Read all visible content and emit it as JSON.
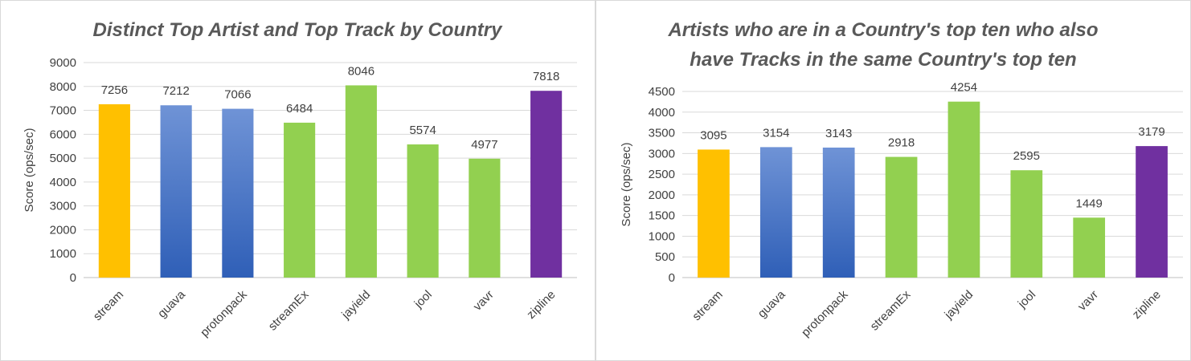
{
  "chart_data": [
    {
      "type": "bar",
      "title": [
        "Distinct Top Artist and Top Track by Country"
      ],
      "ylabel": "Score (ops/sec)",
      "categories": [
        "stream",
        "guava",
        "protonpack",
        "streamEx",
        "jayield",
        "jool",
        "vavr",
        "zipline"
      ],
      "values": [
        7256,
        7212,
        7066,
        6484,
        8046,
        5574,
        4977,
        7818
      ],
      "colors": [
        "yellow",
        "blue",
        "blue",
        "green",
        "green",
        "green",
        "green",
        "purple"
      ],
      "ylim": [
        0,
        9000
      ],
      "yticks": [
        0,
        1000,
        2000,
        3000,
        4000,
        5000,
        6000,
        7000,
        8000,
        9000
      ],
      "grid": true,
      "legend": "none"
    },
    {
      "type": "bar",
      "title": [
        "Artists who are in a Country's top ten who also",
        "have Tracks in the same Country's top ten"
      ],
      "ylabel": "Score (ops/sec)",
      "categories": [
        "stream",
        "guava",
        "protonpack",
        "streamEx",
        "jayield",
        "jool",
        "vavr",
        "zipline"
      ],
      "values": [
        3095,
        3154,
        3143,
        2918,
        4254,
        2595,
        1449,
        3179
      ],
      "colors": [
        "yellow",
        "blue",
        "blue",
        "green",
        "green",
        "green",
        "green",
        "purple"
      ],
      "ylim": [
        0,
        4500
      ],
      "yticks": [
        0,
        500,
        1000,
        1500,
        2000,
        2500,
        3000,
        3500,
        4000,
        4500
      ],
      "grid": true,
      "legend": "none"
    }
  ],
  "palette": {
    "yellow": "#ffc000",
    "blue_top": "#6f93d6",
    "blue_bottom": "#2f5fb7",
    "green": "#92d050",
    "purple": "#7030a0"
  }
}
